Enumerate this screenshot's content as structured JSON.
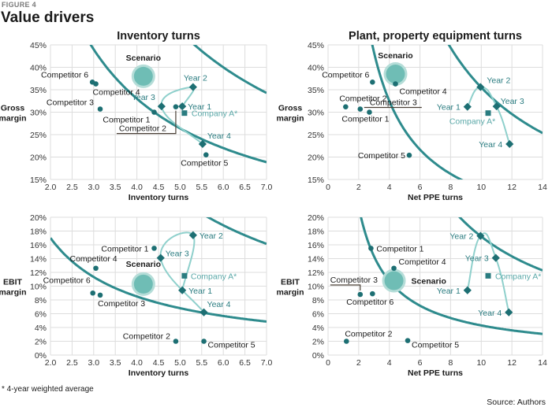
{
  "figure_label": "FIGURE 4",
  "title": "Value drivers",
  "footnote": "* 4-year weighted average",
  "source": "Source: Authors",
  "colors": {
    "frontier": "#2e8b8d",
    "point": "#1d6f73",
    "path": "#8fd0cc",
    "scenario_fill": "#6fbdb5",
    "scenario_ring": "#b5ddd8",
    "company": "#2a7c80",
    "grid": "#dddddd",
    "leader": "#4a4036"
  },
  "chart_data": [
    {
      "id": "inv-gross",
      "type": "scatter",
      "title": "Inventory turns",
      "xlabel": "Inventory turns",
      "ylabel": "Gross margin",
      "xlim": [
        2.0,
        7.0
      ],
      "ylim": [
        15,
        45
      ],
      "xticks": [
        2.0,
        2.5,
        3.0,
        3.5,
        4.0,
        4.5,
        5.0,
        5.5,
        6.0,
        6.5,
        7.0
      ],
      "xtick_labels": [
        "2.0",
        "2.5",
        "3.0",
        "3.5",
        "4.0",
        "4.5",
        "5.0",
        "5.5",
        "6.0",
        "6.5",
        "7.0"
      ],
      "yticks": [
        15,
        20,
        25,
        30,
        35,
        40,
        45
      ],
      "ytick_labels": [
        "15%",
        "20%",
        "25%",
        "30%",
        "35%",
        "40%",
        "45%"
      ],
      "grid": true,
      "frontiers": [
        {
          "name": "iso-curve-low",
          "k": 132
        },
        {
          "name": "iso-curve-high",
          "k": 240
        }
      ],
      "competitors": [
        {
          "name": "Competitor 1",
          "x": 4.4,
          "y": 30.0
        },
        {
          "name": "Competitor 2",
          "x": 4.9,
          "y": 31.2
        },
        {
          "name": "Competitor 3",
          "x": 3.15,
          "y": 30.7
        },
        {
          "name": "Competitor 4",
          "x": 3.05,
          "y": 36.3
        },
        {
          "name": "Competitor 5",
          "x": 5.6,
          "y": 20.5
        },
        {
          "name": "Competitor 6",
          "x": 2.97,
          "y": 36.7
        }
      ],
      "years": [
        {
          "name": "Year 1",
          "x": 5.05,
          "y": 31.3
        },
        {
          "name": "Year 2",
          "x": 5.3,
          "y": 35.6
        },
        {
          "name": "Year 3",
          "x": 4.57,
          "y": 31.3
        },
        {
          "name": "Year 4",
          "x": 5.52,
          "y": 22.9
        }
      ],
      "company": {
        "name": "Company A*",
        "x": 5.1,
        "y": 29.8
      },
      "scenario": {
        "name": "Scenario",
        "x": 4.15,
        "y": 38.0
      }
    },
    {
      "id": "ppe-gross",
      "type": "scatter",
      "title": "Plant, property equipment turns",
      "xlabel": "Net PPE turns",
      "ylabel": "Gross margin",
      "xlim": [
        0,
        14
      ],
      "ylim": [
        15,
        45
      ],
      "xticks": [
        0,
        2,
        4,
        6,
        8,
        10,
        12,
        14
      ],
      "xtick_labels": [
        "0",
        "2",
        "4",
        "6",
        "8",
        "10",
        "12",
        "14"
      ],
      "yticks": [
        15,
        20,
        25,
        30,
        35,
        40,
        45
      ],
      "ytick_labels": [
        "15%",
        "20%",
        "25%",
        "30%",
        "35%",
        "40%",
        "45%"
      ],
      "grid": true,
      "frontiers": [
        {
          "name": "iso-curve-low",
          "k": 130
        },
        {
          "name": "iso-curve-high",
          "k": 355
        }
      ],
      "competitors": [
        {
          "name": "Competitor 1",
          "x": 2.7,
          "y": 30.0
        },
        {
          "name": "Competitor 2",
          "x": 1.15,
          "y": 31.2
        },
        {
          "name": "Competitor 3",
          "x": 2.1,
          "y": 30.7
        },
        {
          "name": "Competitor 4",
          "x": 4.4,
          "y": 36.3
        },
        {
          "name": "Competitor 5",
          "x": 5.3,
          "y": 20.4
        },
        {
          "name": "Competitor 6",
          "x": 2.9,
          "y": 36.7
        }
      ],
      "years": [
        {
          "name": "Year 1",
          "x": 9.1,
          "y": 31.2
        },
        {
          "name": "Year 2",
          "x": 9.95,
          "y": 35.6
        },
        {
          "name": "Year 3",
          "x": 11.0,
          "y": 31.3
        },
        {
          "name": "Year 4",
          "x": 11.85,
          "y": 22.9
        }
      ],
      "company": {
        "name": "Company A*",
        "x": 10.45,
        "y": 29.8
      },
      "scenario": {
        "name": "Scenario",
        "x": 4.4,
        "y": 38.5
      }
    },
    {
      "id": "inv-ebit",
      "type": "scatter",
      "title": "",
      "xlabel": "Inventory turns",
      "ylabel": "EBIT margin",
      "xlim": [
        2.0,
        7.0
      ],
      "ylim": [
        0,
        20
      ],
      "xticks": [
        2.0,
        2.5,
        3.0,
        3.5,
        4.0,
        4.5,
        5.0,
        5.5,
        6.0,
        6.5,
        7.0
      ],
      "xtick_labels": [
        "2.0",
        "2.5",
        "3.0",
        "3.5",
        "4.0",
        "4.5",
        "5.0",
        "5.5",
        "6.0",
        "6.5",
        "7.0"
      ],
      "yticks": [
        0,
        2,
        4,
        6,
        8,
        10,
        12,
        14,
        16,
        18,
        20
      ],
      "ytick_labels": [
        "0%",
        "2%",
        "4%",
        "6%",
        "8%",
        "10%",
        "12%",
        "14%",
        "16%",
        "18%",
        "20%"
      ],
      "grid": true,
      "frontiers": [
        {
          "name": "iso-curve-low",
          "k": 34
        },
        {
          "name": "iso-curve-high",
          "k": 113
        }
      ],
      "competitors": [
        {
          "name": "Competitor 1",
          "x": 4.4,
          "y": 15.5
        },
        {
          "name": "Competitor 2",
          "x": 4.9,
          "y": 2.0
        },
        {
          "name": "Competitor 3",
          "x": 3.15,
          "y": 8.7
        },
        {
          "name": "Competitor 4",
          "x": 3.05,
          "y": 12.6
        },
        {
          "name": "Competitor 5",
          "x": 5.55,
          "y": 2.0
        },
        {
          "name": "Competitor 6",
          "x": 2.98,
          "y": 9.0
        }
      ],
      "years": [
        {
          "name": "Year 1",
          "x": 5.05,
          "y": 9.4
        },
        {
          "name": "Year 2",
          "x": 5.3,
          "y": 17.4
        },
        {
          "name": "Year 3",
          "x": 4.55,
          "y": 14.1
        },
        {
          "name": "Year 4",
          "x": 5.55,
          "y": 6.2
        }
      ],
      "company": {
        "name": "Company A*",
        "x": 5.1,
        "y": 11.5
      },
      "scenario": {
        "name": "Scenario",
        "x": 4.15,
        "y": 10.3
      }
    },
    {
      "id": "ppe-ebit",
      "type": "scatter",
      "title": "",
      "xlabel": "Net PPE turns",
      "ylabel": "EBIT margin",
      "xlim": [
        0,
        14
      ],
      "ylim": [
        0,
        20
      ],
      "xticks": [
        0,
        2,
        4,
        6,
        8,
        10,
        12,
        14
      ],
      "xtick_labels": [
        "0",
        "2",
        "4",
        "6",
        "8",
        "10",
        "12",
        "14"
      ],
      "yticks": [
        0,
        2,
        4,
        6,
        8,
        10,
        12,
        14,
        16,
        18,
        20
      ],
      "ytick_labels": [
        "0%",
        "2%",
        "4%",
        "6%",
        "8%",
        "10%",
        "12%",
        "14%",
        "16%",
        "18%",
        "20%"
      ],
      "grid": true,
      "frontiers": [
        {
          "name": "iso-curve-low",
          "k": 43
        },
        {
          "name": "iso-curve-high",
          "k": 172
        }
      ],
      "competitors": [
        {
          "name": "Competitor 1",
          "x": 2.8,
          "y": 15.5
        },
        {
          "name": "Competitor 2",
          "x": 1.2,
          "y": 2.0
        },
        {
          "name": "Competitor 3",
          "x": 2.1,
          "y": 8.8
        },
        {
          "name": "Competitor 4",
          "x": 4.3,
          "y": 12.6
        },
        {
          "name": "Competitor 5",
          "x": 5.2,
          "y": 2.1
        },
        {
          "name": "Competitor 6",
          "x": 2.9,
          "y": 8.9
        }
      ],
      "years": [
        {
          "name": "Year 1",
          "x": 9.1,
          "y": 9.4
        },
        {
          "name": "Year 2",
          "x": 9.95,
          "y": 17.3
        },
        {
          "name": "Year 3",
          "x": 10.95,
          "y": 14.1
        },
        {
          "name": "Year 4",
          "x": 11.8,
          "y": 6.2
        }
      ],
      "company": {
        "name": "Company A*",
        "x": 10.45,
        "y": 11.5
      },
      "scenario": {
        "name": "Scenario",
        "x": 4.3,
        "y": 10.8
      }
    }
  ]
}
